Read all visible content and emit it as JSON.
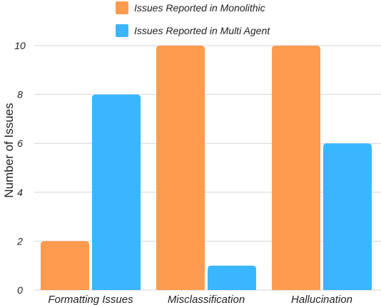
{
  "chart_data": {
    "type": "bar",
    "categories": [
      "Formatting Issues",
      "Misclassification",
      "Hallucination"
    ],
    "series": [
      {
        "name": "Issues Reported in Monolithic",
        "values": [
          2,
          10,
          10
        ],
        "color": "#FF9B4F"
      },
      {
        "name": "Issues Reported in Multi Agent",
        "values": [
          8,
          1,
          6
        ],
        "color": "#3AB6FF"
      }
    ],
    "title": "",
    "xlabel": "",
    "ylabel": "Number of Issues",
    "ylim": [
      0,
      10
    ],
    "yticks": [
      0,
      2,
      4,
      6,
      8,
      10
    ],
    "grid": true,
    "legend_position": "top-center",
    "grid_color": "#d6d6d6"
  }
}
